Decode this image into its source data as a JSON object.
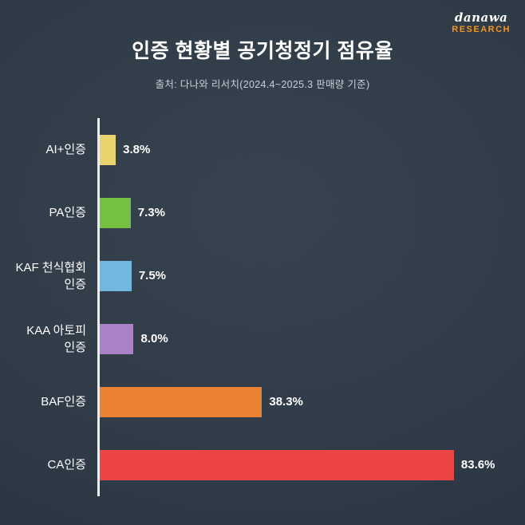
{
  "logo": {
    "top": "danawa",
    "bottom": "RESEARCH",
    "accent_color": "#f7941d"
  },
  "header": {
    "title": "인증 현황별 공기청정기 점유율",
    "subtitle": "출처: 다나와 리서치(2024.4~2025.3 판매량 기준)"
  },
  "chart_data": {
    "type": "bar",
    "orientation": "horizontal",
    "title": "인증 현황별 공기청정기 점유율",
    "source": "출처: 다나와 리서치(2024.4~2025.3 판매량 기준)",
    "categories": [
      "AI+인증",
      "PA인증",
      "KAF 천식협회 인증",
      "KAA 아토피 인증",
      "BAF인증",
      "CA인증"
    ],
    "values": [
      3.8,
      7.3,
      7.5,
      8.0,
      38.3,
      83.6
    ],
    "value_labels": [
      "3.8%",
      "7.3%",
      "7.5%",
      "8.0%",
      "38.3%",
      "83.6%"
    ],
    "bar_colors": [
      "#e9d36c",
      "#75c03f",
      "#72b7dd",
      "#a981c6",
      "#ec8033",
      "#ed4446"
    ],
    "xlabel": "",
    "ylabel": "",
    "xlim": [
      0,
      100
    ],
    "grid": false,
    "legend": false,
    "background_color": "#2e3a46",
    "axis_line_color": "#e8edf2"
  }
}
